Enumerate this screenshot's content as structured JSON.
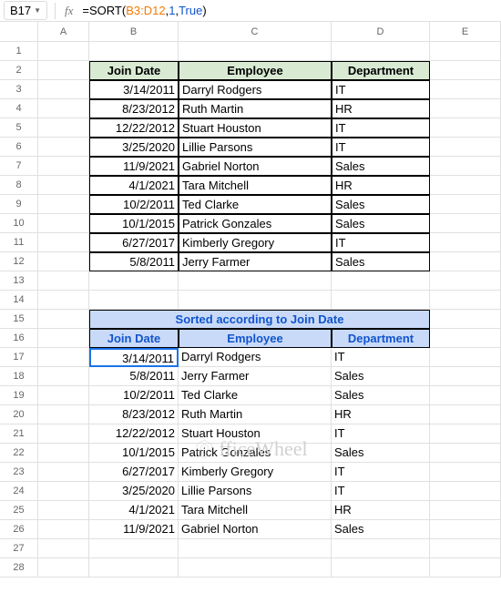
{
  "nameBox": "B17",
  "formula": {
    "prefix": "=SORT(",
    "ref": "B3:D12",
    "sep1": ",",
    "arg1": "1",
    "sep2": ",",
    "arg2": "True",
    "suffix": ")"
  },
  "columns": [
    "A",
    "B",
    "C",
    "D",
    "E"
  ],
  "colWidths": {
    "A": 56,
    "B": 98,
    "C": 168,
    "D": 108,
    "E": 78
  },
  "headers1": {
    "B": "Join Date",
    "C": "Employee",
    "D": "Department"
  },
  "table1": [
    {
      "date": "3/14/2011",
      "emp": "Darryl Rodgers",
      "dept": "IT"
    },
    {
      "date": "8/23/2012",
      "emp": "Ruth Martin",
      "dept": "HR"
    },
    {
      "date": "12/22/2012",
      "emp": "Stuart Houston",
      "dept": "IT"
    },
    {
      "date": "3/25/2020",
      "emp": "Lillie Parsons",
      "dept": "IT"
    },
    {
      "date": "11/9/2021",
      "emp": "Gabriel Norton",
      "dept": "Sales"
    },
    {
      "date": "4/1/2021",
      "emp": "Tara Mitchell",
      "dept": "HR"
    },
    {
      "date": "10/2/2011",
      "emp": "Ted Clarke",
      "dept": "Sales"
    },
    {
      "date": "10/1/2015",
      "emp": "Patrick Gonzales",
      "dept": "Sales"
    },
    {
      "date": "6/27/2017",
      "emp": "Kimberly Gregory",
      "dept": "IT"
    },
    {
      "date": "5/8/2011",
      "emp": "Jerry Farmer",
      "dept": "Sales"
    }
  ],
  "sortedTitle": "Sorted according to Join Date",
  "headers2": {
    "B": "Join Date",
    "C": "Employee",
    "D": "Department"
  },
  "table2": [
    {
      "date": "3/14/2011",
      "emp": "Darryl Rodgers",
      "dept": "IT"
    },
    {
      "date": "5/8/2011",
      "emp": "Jerry Farmer",
      "dept": "Sales"
    },
    {
      "date": "10/2/2011",
      "emp": "Ted Clarke",
      "dept": "Sales"
    },
    {
      "date": "8/23/2012",
      "emp": "Ruth Martin",
      "dept": "HR"
    },
    {
      "date": "12/22/2012",
      "emp": "Stuart Houston",
      "dept": "IT"
    },
    {
      "date": "10/1/2015",
      "emp": "Patrick Gonzales",
      "dept": "Sales"
    },
    {
      "date": "6/27/2017",
      "emp": "Kimberly Gregory",
      "dept": "IT"
    },
    {
      "date": "3/25/2020",
      "emp": "Lillie Parsons",
      "dept": "IT"
    },
    {
      "date": "4/1/2021",
      "emp": "Tara Mitchell",
      "dept": "HR"
    },
    {
      "date": "11/9/2021",
      "emp": "Gabriel Norton",
      "dept": "Sales"
    }
  ],
  "watermark": "fficeWheel",
  "rowCount": 28,
  "activeCell": {
    "row": 17,
    "col": "B"
  },
  "colors": {
    "headerGreen": "#d9ead3",
    "headerBlue": "#c9daf8",
    "blueLink": "#1155cc",
    "activeRing": "#1a73e8",
    "gridLine": "#e0e0e0",
    "formulaRef": "#f47b00"
  }
}
